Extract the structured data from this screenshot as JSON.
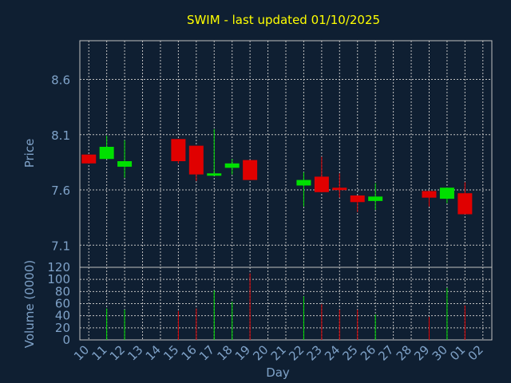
{
  "chart_data": {
    "type": "candlestick",
    "title": "SWIM - last updated 01/10/2025",
    "xlabel": "Day",
    "price_panel": {
      "ylabel": "Price",
      "ylim": [
        6.9,
        8.95
      ],
      "yticks": [
        "8.6",
        "8.1",
        "7.6",
        "7.1"
      ],
      "ytick_values": [
        8.6,
        8.1,
        7.6,
        7.1
      ]
    },
    "volume_panel": {
      "ylabel": "Volume (0000)",
      "ylim": [
        0,
        120
      ],
      "yticks": [
        "120",
        "100",
        "80",
        "60",
        "40",
        "20",
        "0"
      ],
      "ytick_values": [
        120,
        100,
        80,
        60,
        40,
        20,
        0
      ]
    },
    "x_ticks": [
      "10",
      "11",
      "12",
      "13",
      "14",
      "15",
      "16",
      "17",
      "18",
      "19",
      "20",
      "21",
      "22",
      "23",
      "24",
      "25",
      "26",
      "27",
      "28",
      "29",
      "30",
      "01",
      "02"
    ],
    "candles": [
      {
        "day": "10",
        "open": 7.92,
        "close": 7.84,
        "high": 7.92,
        "low": 7.84,
        "volume": 0
      },
      {
        "day": "11",
        "open": 7.88,
        "close": 7.99,
        "high": 8.09,
        "low": 7.88,
        "volume": 52
      },
      {
        "day": "12",
        "open": 7.81,
        "close": 7.86,
        "high": 8.05,
        "low": 7.71,
        "volume": 50
      },
      {
        "day": "15",
        "open": 8.06,
        "close": 7.86,
        "high": 8.06,
        "low": 7.84,
        "volume": 48
      },
      {
        "day": "16",
        "open": 8.0,
        "close": 7.74,
        "high": 8.0,
        "low": 7.68,
        "volume": 52
      },
      {
        "day": "17",
        "open": 7.74,
        "close": 7.75,
        "high": 8.15,
        "low": 7.74,
        "volume": 82
      },
      {
        "day": "18",
        "open": 7.8,
        "close": 7.84,
        "high": 7.88,
        "low": 7.74,
        "volume": 63
      },
      {
        "day": "19",
        "open": 7.87,
        "close": 7.69,
        "high": 7.87,
        "low": 7.69,
        "volume": 110
      },
      {
        "day": "22",
        "open": 7.64,
        "close": 7.69,
        "high": 7.76,
        "low": 7.45,
        "volume": 72
      },
      {
        "day": "23",
        "open": 7.72,
        "close": 7.58,
        "high": 7.9,
        "low": 7.58,
        "volume": 59
      },
      {
        "day": "24",
        "open": 7.62,
        "close": 7.61,
        "high": 7.75,
        "low": 7.53,
        "volume": 50
      },
      {
        "day": "25",
        "open": 7.55,
        "close": 7.49,
        "high": 7.55,
        "low": 7.4,
        "volume": 50
      },
      {
        "day": "26",
        "open": 7.5,
        "close": 7.54,
        "high": 7.66,
        "low": 7.42,
        "volume": 42
      },
      {
        "day": "29",
        "open": 7.59,
        "close": 7.53,
        "high": 7.59,
        "low": 7.45,
        "volume": 38
      },
      {
        "day": "30",
        "open": 7.52,
        "close": 7.62,
        "high": 7.62,
        "low": 7.48,
        "volume": 86
      },
      {
        "day": "01",
        "open": 7.57,
        "close": 7.38,
        "high": 7.67,
        "low": 7.38,
        "volume": 57
      }
    ],
    "colors": {
      "up": "#00e000",
      "down": "#e00000",
      "background": "#0f1f32",
      "grid": "#c0c0c0",
      "axis": "#7fa2c8",
      "title": "#ffff00",
      "label": "#7fa2c8"
    },
    "grid": true
  }
}
